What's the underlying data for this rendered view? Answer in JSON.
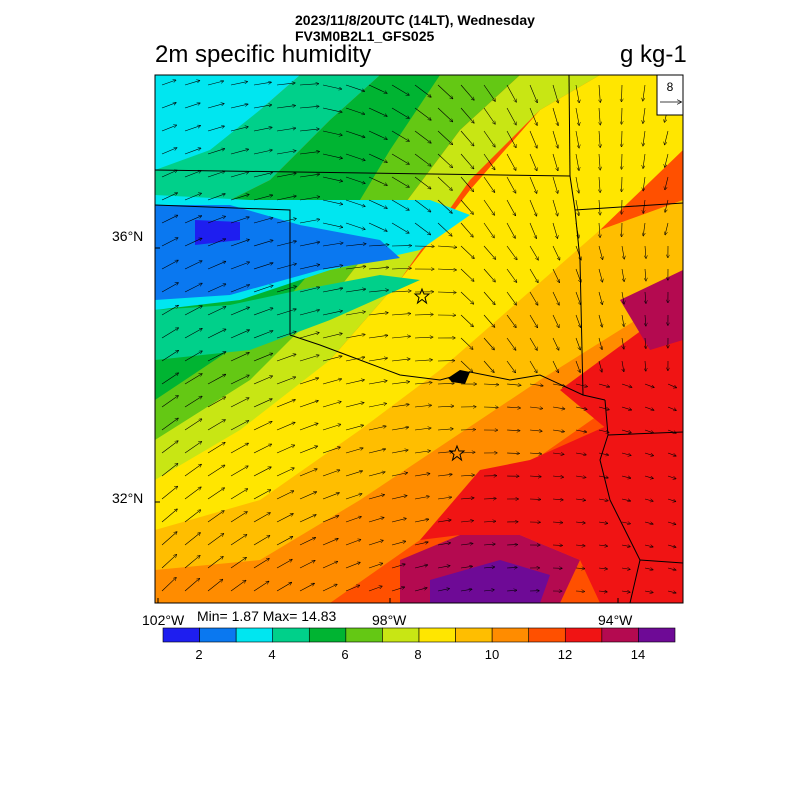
{
  "header": {
    "line1": "2023/11/8/20UTC (14LT), Wednesday",
    "line2": "FV3M0B2L1_GFS025"
  },
  "title": "2m specific humidity",
  "units": "g kg-1",
  "stats": "Min= 1.87 Max= 14.83",
  "vector_ref": "8",
  "axes": {
    "lat_labels": [
      "36°N",
      "32°N"
    ],
    "lon_labels": [
      "102°W",
      "98°W",
      "94°W"
    ]
  },
  "colorbar": {
    "labels": [
      "2",
      "4",
      "6",
      "8",
      "10",
      "12",
      "14"
    ],
    "colors": [
      "#1e1ef0",
      "#0a78f0",
      "#00e6f0",
      "#00d08a",
      "#00b432",
      "#64c814",
      "#c8e614",
      "#ffe600",
      "#ffbe00",
      "#ff8c00",
      "#ff5000",
      "#f01414",
      "#b40a50",
      "#6e0a96"
    ]
  },
  "markers": [
    "star",
    "star"
  ]
}
